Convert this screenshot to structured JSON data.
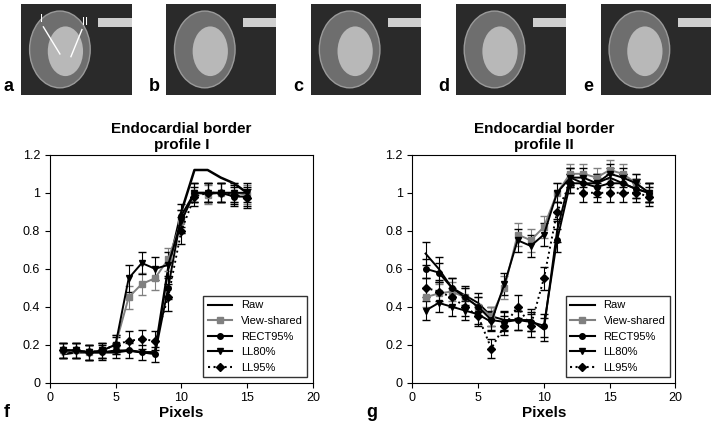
{
  "images": {
    "labels": [
      "a",
      "b",
      "c",
      "d",
      "e"
    ],
    "profile_labels": [
      "I",
      "II"
    ]
  },
  "chart_data": [
    {
      "type": "line",
      "panel_label": "f",
      "title": "Endocardial border\nprofile I",
      "x_label": "Pixels",
      "xlim": [
        0,
        20
      ],
      "xticks": [
        0,
        5,
        10,
        15,
        20
      ],
      "ylim": [
        0,
        1.2
      ],
      "yticks": [
        0,
        0.2,
        0.4,
        0.6,
        0.8,
        1,
        1.2
      ],
      "legend": "lower right",
      "x": [
        1,
        2,
        3,
        4,
        5,
        6,
        7,
        8,
        9,
        10,
        11,
        12,
        13,
        14,
        15
      ],
      "series": [
        {
          "name": "Raw",
          "color": "#000000",
          "marker": "none",
          "line_style": "solid",
          "values": [
            0.15,
            0.16,
            0.16,
            0.16,
            0.16,
            0.17,
            0.16,
            0.16,
            0.6,
            0.9,
            1.12,
            1.12,
            1.08,
            1.05,
            1.0
          ]
        },
        {
          "name": "View-shared",
          "color": "#808080",
          "marker": "square",
          "line_style": "solid",
          "values": [
            0.17,
            0.17,
            0.16,
            0.17,
            0.2,
            0.45,
            0.52,
            0.55,
            0.65,
            0.85,
            1.0,
            0.99,
            1.0,
            1.0,
            0.99
          ],
          "errors": [
            0.04,
            0.04,
            0.04,
            0.04,
            0.05,
            0.06,
            0.06,
            0.06,
            0.06,
            0.06,
            0.05,
            0.05,
            0.05,
            0.05,
            0.05
          ]
        },
        {
          "name": "RECT95%",
          "color": "#000000",
          "marker": "circle",
          "line_style": "solid",
          "values": [
            0.17,
            0.17,
            0.16,
            0.16,
            0.17,
            0.17,
            0.16,
            0.15,
            0.5,
            0.88,
            1.0,
            1.0,
            1.0,
            0.98,
            0.98
          ],
          "errors": [
            0.04,
            0.04,
            0.04,
            0.04,
            0.04,
            0.04,
            0.04,
            0.04,
            0.06,
            0.06,
            0.05,
            0.05,
            0.05,
            0.05,
            0.05
          ]
        },
        {
          "name": "LL80%",
          "color": "#000000",
          "marker": "triangle",
          "line_style": "solid",
          "values": [
            0.17,
            0.17,
            0.16,
            0.17,
            0.2,
            0.55,
            0.63,
            0.6,
            0.62,
            0.85,
            1.0,
            1.0,
            1.0,
            1.0,
            1.0
          ],
          "errors": [
            0.04,
            0.04,
            0.04,
            0.04,
            0.05,
            0.07,
            0.06,
            0.06,
            0.07,
            0.06,
            0.05,
            0.05,
            0.05,
            0.05,
            0.05
          ]
        },
        {
          "name": "LL95%",
          "color": "#000000",
          "marker": "diamond",
          "line_style": "dotted",
          "values": [
            0.17,
            0.17,
            0.16,
            0.17,
            0.2,
            0.22,
            0.23,
            0.22,
            0.45,
            0.8,
            0.98,
            1.0,
            1.0,
            0.99,
            0.97
          ],
          "errors": [
            0.04,
            0.04,
            0.04,
            0.04,
            0.04,
            0.05,
            0.05,
            0.05,
            0.07,
            0.07,
            0.05,
            0.05,
            0.05,
            0.05,
            0.05
          ]
        }
      ]
    },
    {
      "type": "line",
      "panel_label": "g",
      "title": "Endocardial border\nprofile II",
      "x_label": "Pixels",
      "xlim": [
        0,
        20
      ],
      "xticks": [
        0,
        5,
        10,
        15,
        20
      ],
      "ylim": [
        0,
        1.2
      ],
      "yticks": [
        0,
        0.2,
        0.4,
        0.6,
        0.8,
        1,
        1.2
      ],
      "legend": "lower right",
      "x": [
        1,
        2,
        3,
        4,
        5,
        6,
        7,
        8,
        9,
        10,
        11,
        12,
        13,
        14,
        15,
        16,
        17,
        18
      ],
      "series": [
        {
          "name": "Raw",
          "color": "#000000",
          "marker": "none",
          "line_style": "solid",
          "values": [
            0.68,
            0.6,
            0.5,
            0.46,
            0.42,
            0.35,
            0.33,
            0.33,
            0.33,
            0.28,
            0.8,
            1.08,
            1.05,
            1.05,
            1.08,
            1.05,
            1.02,
            1.0
          ],
          "errors": [
            0.06,
            0.06,
            0.05,
            0.05,
            0.05,
            0.05,
            0.05,
            0.05,
            0.06,
            0.06,
            0.06,
            0.05,
            0.05,
            0.05,
            0.05,
            0.05,
            0.05,
            0.05
          ]
        },
        {
          "name": "View-shared",
          "color": "#808080",
          "marker": "square",
          "line_style": "solid",
          "values": [
            0.45,
            0.47,
            0.48,
            0.45,
            0.4,
            0.35,
            0.5,
            0.78,
            0.75,
            0.82,
            1.0,
            1.1,
            1.1,
            1.08,
            1.12,
            1.1,
            1.05,
            1.0
          ],
          "errors": [
            0.05,
            0.05,
            0.05,
            0.05,
            0.05,
            0.05,
            0.06,
            0.06,
            0.06,
            0.06,
            0.05,
            0.05,
            0.05,
            0.05,
            0.05,
            0.05,
            0.05,
            0.05
          ]
        },
        {
          "name": "RECT95%",
          "color": "#000000",
          "marker": "circle",
          "line_style": "solid",
          "values": [
            0.6,
            0.58,
            0.5,
            0.45,
            0.4,
            0.33,
            0.32,
            0.33,
            0.32,
            0.3,
            0.75,
            1.05,
            1.05,
            1.03,
            1.05,
            1.05,
            1.02,
            1.0
          ],
          "errors": [
            0.05,
            0.05,
            0.05,
            0.05,
            0.05,
            0.05,
            0.05,
            0.05,
            0.05,
            0.06,
            0.06,
            0.05,
            0.05,
            0.05,
            0.05,
            0.05,
            0.05,
            0.05
          ]
        },
        {
          "name": "LL80%",
          "color": "#000000",
          "marker": "triangle",
          "line_style": "solid",
          "values": [
            0.38,
            0.42,
            0.4,
            0.38,
            0.36,
            0.32,
            0.52,
            0.75,
            0.72,
            0.78,
            1.0,
            1.08,
            1.08,
            1.05,
            1.1,
            1.08,
            1.05,
            1.0
          ],
          "errors": [
            0.05,
            0.05,
            0.05,
            0.05,
            0.05,
            0.05,
            0.06,
            0.06,
            0.06,
            0.06,
            0.05,
            0.05,
            0.05,
            0.05,
            0.05,
            0.05,
            0.05,
            0.05
          ]
        },
        {
          "name": "LL95%",
          "color": "#000000",
          "marker": "diamond",
          "line_style": "dotted",
          "values": [
            0.5,
            0.48,
            0.45,
            0.4,
            0.35,
            0.18,
            0.3,
            0.4,
            0.3,
            0.55,
            0.9,
            1.05,
            1.0,
            1.0,
            1.0,
            1.0,
            1.0,
            0.98
          ],
          "errors": [
            0.05,
            0.05,
            0.05,
            0.05,
            0.05,
            0.05,
            0.05,
            0.06,
            0.06,
            0.06,
            0.05,
            0.05,
            0.05,
            0.05,
            0.05,
            0.05,
            0.05,
            0.05
          ]
        }
      ]
    }
  ]
}
